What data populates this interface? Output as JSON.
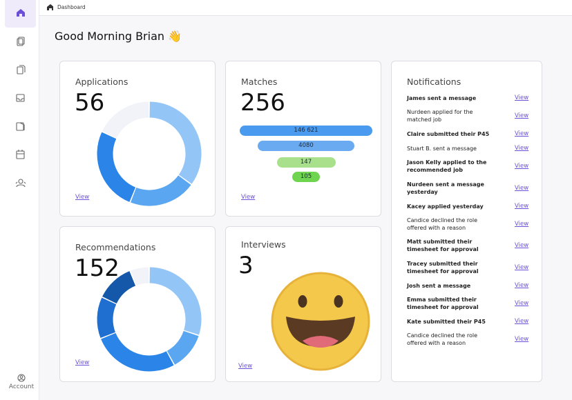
{
  "breadcrumb": "Dashboard",
  "greeting": "Good Morning Brian 👋",
  "sidebar": {
    "account": "Account"
  },
  "cards": {
    "applications": {
      "title": "Applications",
      "count": 56,
      "link": "View",
      "segments": {
        "values": [
          35,
          21,
          26,
          18
        ],
        "colors": [
          "#93c5f7",
          "#5aa6f0",
          "#2b84e8",
          "#f1f3f8"
        ]
      }
    },
    "matches": {
      "title": "Matches",
      "count": 256,
      "link": "View",
      "funnel": {
        "values": [
          146621,
          4080,
          147,
          105
        ],
        "value_labels": [
          "146 621",
          "4080",
          "147",
          "105"
        ],
        "colors": [
          "#4a9af0",
          "#6aaaf0",
          "#a8e08c",
          "#6fd44f"
        ]
      }
    },
    "recommendations": {
      "title": "Recommendations",
      "count": 152,
      "link": "View",
      "segments": {
        "values": [
          30,
          12,
          27,
          13,
          12,
          6
        ],
        "colors": [
          "#93c5f7",
          "#5aa6f0",
          "#2b84e8",
          "#1f6fd0",
          "#1557a8",
          "#f1f3f8"
        ]
      }
    },
    "interviews": {
      "title": "Interviews",
      "count": 3,
      "link": "View"
    },
    "notifications": {
      "title": "Notifications",
      "items": [
        {
          "text": "James sent a message",
          "bold": true,
          "link": "View"
        },
        {
          "text": "Nurdeen applied for the matched job",
          "bold": false,
          "link": "View"
        },
        {
          "text": "Claire submitted their P45",
          "bold": true,
          "link": "View"
        },
        {
          "text": "Stuart B. sent a message",
          "bold": false,
          "link": "View"
        },
        {
          "text": "Jason Kelly applied to the recommended job",
          "bold": true,
          "link": "View"
        },
        {
          "text": "Nurdeen sent a message yesterday",
          "bold": true,
          "link": "View"
        },
        {
          "text": "Kacey applied yesterday",
          "bold": true,
          "link": "View"
        },
        {
          "text": "Candice declined the role offered with a reason",
          "bold": false,
          "link": "View"
        },
        {
          "text": "Matt submitted their timesheet for approval",
          "bold": true,
          "link": "View"
        },
        {
          "text": "Tracey submitted their timesheet for approval",
          "bold": true,
          "link": "View"
        },
        {
          "text": "Josh sent a message",
          "bold": true,
          "link": "View"
        },
        {
          "text": "Emma submitted their timesheet for approval",
          "bold": true,
          "link": "View"
        },
        {
          "text": "Kate submitted their P45",
          "bold": true,
          "link": "View"
        },
        {
          "text": "Candice declined the role offered with a reason",
          "bold": false,
          "link": "View"
        }
      ]
    }
  }
}
